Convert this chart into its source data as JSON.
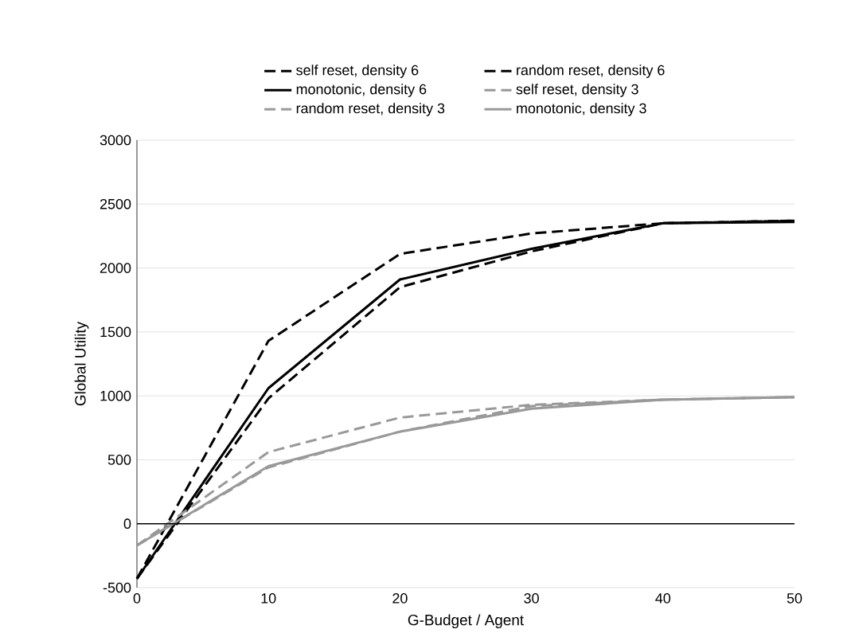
{
  "chart_data": {
    "type": "line",
    "xlabel": "G-Budget / Agent",
    "ylabel": "Global Utility",
    "x": [
      0,
      10,
      20,
      30,
      40,
      50
    ],
    "xlim": [
      0,
      50
    ],
    "xticks": [
      0,
      10,
      20,
      30,
      40,
      50
    ],
    "ylim": [
      -500,
      3000
    ],
    "yticks": [
      -500,
      0,
      500,
      1000,
      1500,
      2000,
      2500,
      3000
    ],
    "grid": "y",
    "legend": "top",
    "marker": "none",
    "ref_lines": [
      {
        "axis": "y",
        "value": 0,
        "color": "#000000"
      }
    ],
    "series": [
      {
        "name": "self reset, density 6",
        "color": "#000000",
        "line_style": "dashed",
        "values": [
          -430,
          1430,
          2110,
          2270,
          2350,
          2370
        ]
      },
      {
        "name": "random reset, density 6",
        "color": "#000000",
        "line_style": "dashed",
        "values": [
          -430,
          980,
          1850,
          2130,
          2350,
          2370
        ]
      },
      {
        "name": "monotonic, density 6",
        "color": "#000000",
        "line_style": "solid",
        "values": [
          -430,
          1060,
          1910,
          2150,
          2350,
          2360
        ]
      },
      {
        "name": "self reset, density 3",
        "color": "#999999",
        "line_style": "dashed",
        "values": [
          -170,
          560,
          830,
          930,
          970,
          990
        ]
      },
      {
        "name": "random reset, density 3",
        "color": "#999999",
        "line_style": "dashed",
        "values": [
          -170,
          440,
          720,
          920,
          970,
          990
        ]
      },
      {
        "name": "monotonic, density 3",
        "color": "#999999",
        "line_style": "solid",
        "values": [
          -170,
          450,
          720,
          900,
          970,
          990
        ]
      }
    ]
  }
}
